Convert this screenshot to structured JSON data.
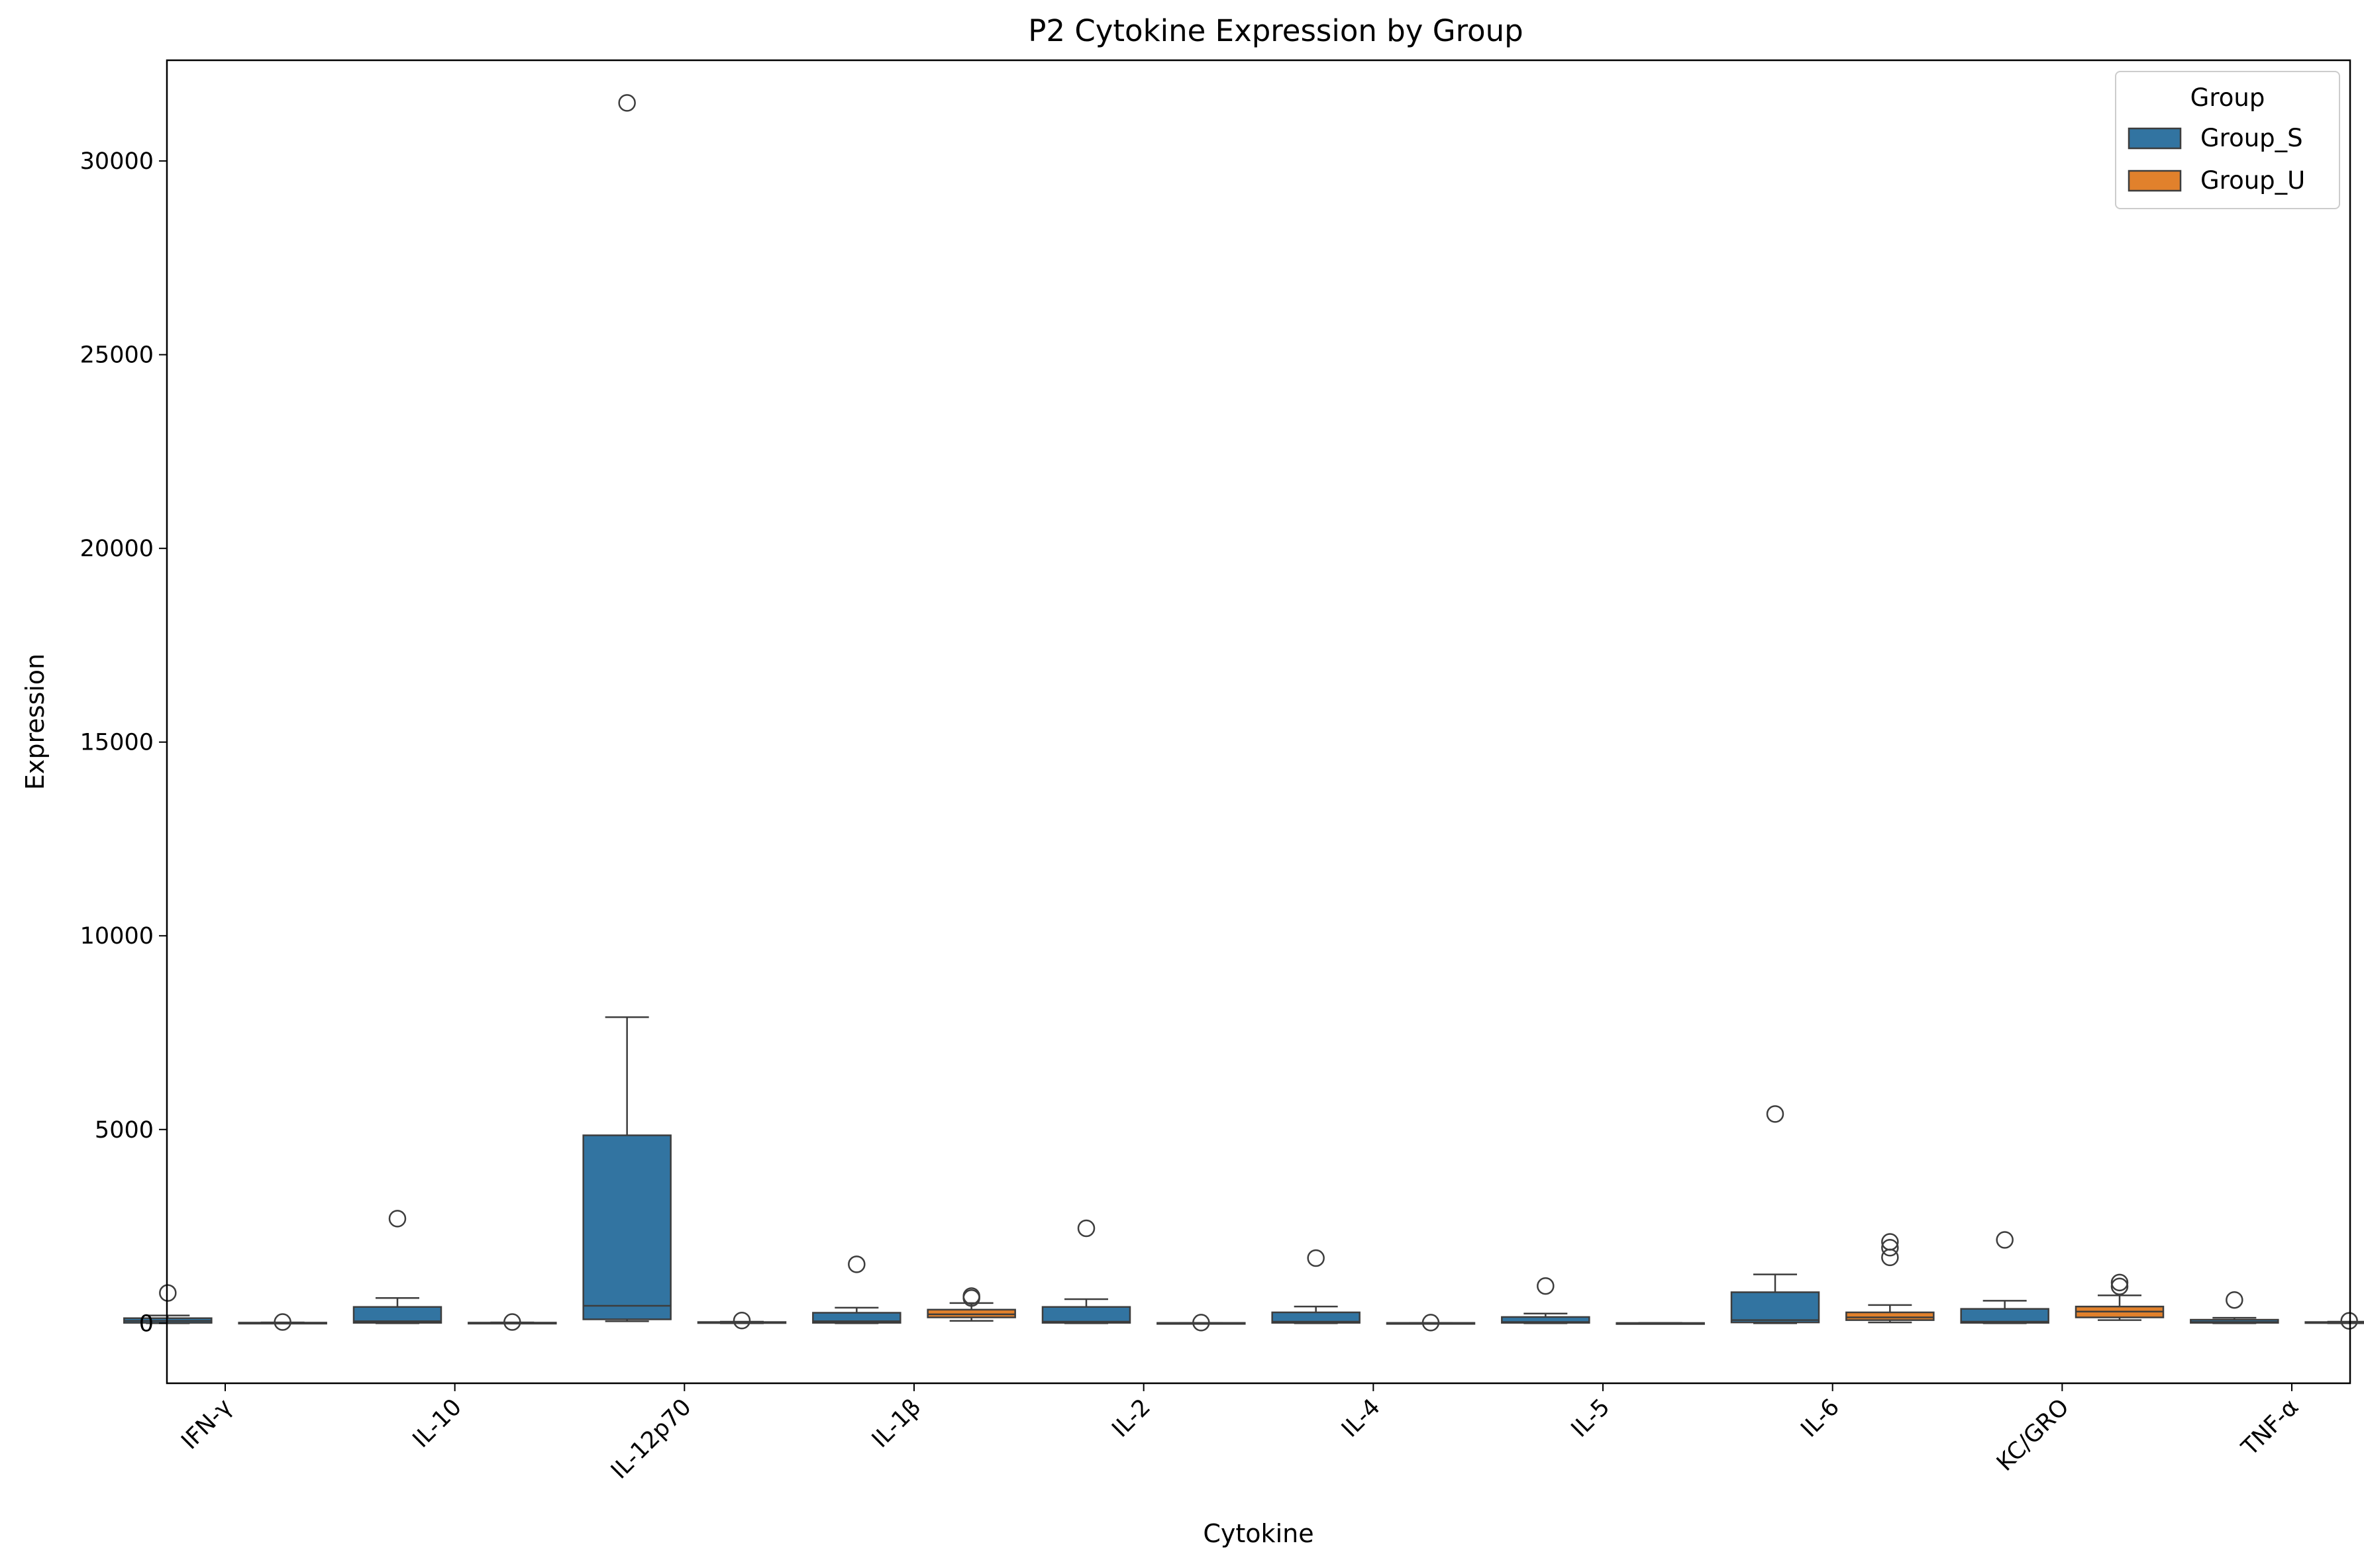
{
  "chart_data": {
    "type": "box",
    "title": "P2 Cytokine Expression by Group",
    "xlabel": "Cytokine",
    "ylabel": "Expression",
    "ylim": [
      -1550,
      32600
    ],
    "yticks": [
      0,
      5000,
      10000,
      15000,
      20000,
      25000,
      30000
    ],
    "grid": false,
    "legend": {
      "title": "Group",
      "placement": "top-right"
    },
    "categories": [
      "IFN-γ",
      "IL-10",
      "IL-12p70",
      "IL-1β",
      "IL-2",
      "IL-4",
      "IL-5",
      "IL-6",
      "KC/GRO",
      "TNF-α"
    ],
    "series": [
      {
        "name": "Group_S",
        "color": "#3274a1",
        "boxes": [
          {
            "whisker_low": 0,
            "q1": 10,
            "median": 60,
            "q3": 130,
            "whisker_high": 200,
            "outliers": [
              780
            ]
          },
          {
            "whisker_low": 0,
            "q1": 10,
            "median": 50,
            "q3": 420,
            "whisker_high": 650,
            "outliers": [
              2700
            ]
          },
          {
            "whisker_low": 50,
            "q1": 100,
            "median": 450,
            "q3": 4850,
            "whisker_high": 7900,
            "outliers": [
              31500
            ]
          },
          {
            "whisker_low": 0,
            "q1": 10,
            "median": 50,
            "q3": 270,
            "whisker_high": 400,
            "outliers": [
              1520
            ]
          },
          {
            "whisker_low": 0,
            "q1": 10,
            "median": 40,
            "q3": 420,
            "whisker_high": 620,
            "outliers": [
              2450
            ]
          },
          {
            "whisker_low": 0,
            "q1": 10,
            "median": 40,
            "q3": 280,
            "whisker_high": 430,
            "outliers": [
              1680
            ]
          },
          {
            "whisker_low": 0,
            "q1": 10,
            "median": 30,
            "q3": 160,
            "whisker_high": 250,
            "outliers": [
              960
            ]
          },
          {
            "whisker_low": 0,
            "q1": 20,
            "median": 80,
            "q3": 800,
            "whisker_high": 1260,
            "outliers": [
              5400
            ]
          },
          {
            "whisker_low": 0,
            "q1": 10,
            "median": 40,
            "q3": 370,
            "whisker_high": 580,
            "outliers": [
              2150
            ]
          },
          {
            "whisker_low": 0,
            "q1": 10,
            "median": 30,
            "q3": 90,
            "whisker_high": 140,
            "outliers": [
              600
            ]
          }
        ]
      },
      {
        "name": "Group_U",
        "color": "#e1812c",
        "boxes": [
          {
            "whisker_low": 0,
            "q1": 5,
            "median": 10,
            "q3": 15,
            "whisker_high": 20,
            "outliers": [
              30
            ]
          },
          {
            "whisker_low": 0,
            "q1": 5,
            "median": 10,
            "q3": 15,
            "whisker_high": 20,
            "outliers": [
              30
            ]
          },
          {
            "whisker_low": 0,
            "q1": 10,
            "median": 20,
            "q3": 30,
            "whisker_high": 40,
            "outliers": [
              70
            ]
          },
          {
            "whisker_low": 60,
            "q1": 150,
            "median": 230,
            "q3": 350,
            "whisker_high": 520,
            "outliers": [
              650,
              700
            ]
          },
          {
            "whisker_low": 0,
            "q1": 2,
            "median": 5,
            "q3": 8,
            "whisker_high": 10,
            "outliers": [
              15
            ]
          },
          {
            "whisker_low": 0,
            "q1": 2,
            "median": 5,
            "q3": 8,
            "whisker_high": 10,
            "outliers": [
              15
            ]
          },
          {
            "whisker_low": 0,
            "q1": 2,
            "median": 3,
            "q3": 5,
            "whisker_high": 8,
            "outliers": []
          },
          {
            "whisker_low": 20,
            "q1": 80,
            "median": 150,
            "q3": 280,
            "whisker_high": 470,
            "outliers": [
              1700,
              1950,
              2100
            ]
          },
          {
            "whisker_low": 80,
            "q1": 150,
            "median": 300,
            "q3": 430,
            "whisker_high": 720,
            "outliers": [
              950,
              1050
            ]
          },
          {
            "whisker_low": 0,
            "q1": 10,
            "median": 20,
            "q3": 30,
            "whisker_high": 40,
            "outliers": [
              60
            ]
          }
        ]
      }
    ]
  }
}
